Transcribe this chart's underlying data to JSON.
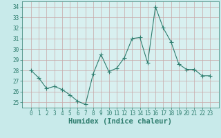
{
  "x": [
    0,
    1,
    2,
    3,
    4,
    5,
    6,
    7,
    8,
    9,
    10,
    11,
    12,
    13,
    14,
    15,
    16,
    17,
    18,
    19,
    20,
    21,
    22,
    23
  ],
  "y": [
    28,
    27.3,
    26.3,
    26.5,
    26.2,
    25.7,
    25.1,
    24.8,
    27.7,
    29.5,
    27.9,
    28.2,
    29.2,
    31.0,
    31.1,
    28.7,
    34.0,
    32.0,
    30.7,
    28.6,
    28.1,
    28.1,
    27.5,
    27.5
  ],
  "line_color": "#2e7d6e",
  "marker": "+",
  "marker_size": 4,
  "bg_color": "#c8eaea",
  "grid_color": "#c8a8a8",
  "grid_bg": "#d8f0f0",
  "xlabel": "Humidex (Indice chaleur)",
  "ylim": [
    24.5,
    34.5
  ],
  "yticks": [
    25,
    26,
    27,
    28,
    29,
    30,
    31,
    32,
    33,
    34
  ],
  "xticks": [
    0,
    1,
    2,
    3,
    4,
    5,
    6,
    7,
    8,
    9,
    10,
    11,
    12,
    13,
    14,
    15,
    16,
    17,
    18,
    19,
    20,
    21,
    22,
    23
  ],
  "tick_fontsize": 5.5,
  "xlabel_fontsize": 7.5,
  "line_width": 0.8
}
